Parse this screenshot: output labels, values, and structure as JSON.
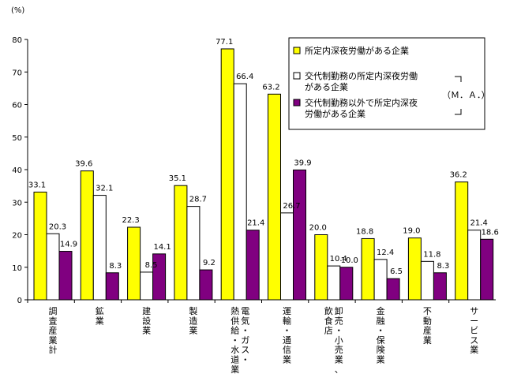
{
  "chart_data": {
    "type": "bar",
    "ylabel": "(%)",
    "ylim": [
      0,
      80
    ],
    "yticks": [
      0,
      10,
      20,
      30,
      40,
      50,
      60,
      70,
      80
    ],
    "grid": false,
    "legend_position": "top-right",
    "legend_bracket_note": "（Ｍ．Ａ．）",
    "categories": [
      "調査産業計",
      "鉱業",
      "建設業",
      "製造業",
      "電気・ガス・熱供給・水道業",
      "運輸・通信業",
      "卸売・小売業、飲食店",
      "金融・保険業",
      "不動産業",
      "サービス業"
    ],
    "category_columns": [
      [
        "調査産業計"
      ],
      [
        "鉱業"
      ],
      [
        "建設業"
      ],
      [
        "製造業"
      ],
      [
        "電気・ガス・",
        "熱供給・水道業"
      ],
      [
        "運輸・通信業"
      ],
      [
        "卸売・小売業、",
        "飲食店"
      ],
      [
        "金融・保険業"
      ],
      [
        "不動産業"
      ],
      [
        "サービス業"
      ]
    ],
    "series": [
      {
        "name": "所定内深夜労働がある企業",
        "color": "#ffff00",
        "values": [
          33.1,
          39.6,
          22.3,
          35.1,
          77.1,
          63.2,
          20.0,
          18.8,
          19.0,
          36.2
        ]
      },
      {
        "name": "交代制勤務の所定内深夜労働がある企業",
        "color": "#ffffff",
        "values": [
          20.3,
          32.1,
          8.5,
          28.7,
          66.4,
          26.7,
          10.4,
          12.4,
          11.8,
          21.4
        ]
      },
      {
        "name": "交代制勤務以外で所定内深夜労働がある企業",
        "color": "#800080",
        "values": [
          14.9,
          8.3,
          14.1,
          9.2,
          21.4,
          39.9,
          10.0,
          6.5,
          8.3,
          18.6
        ]
      }
    ],
    "legend_lines": [
      [
        "所定内深夜労働がある企業"
      ],
      [
        "交代制勤務の所定内深夜労働",
        "がある企業"
      ],
      [
        "交代制勤務以外で所定内深夜",
        "労働がある企業"
      ]
    ]
  }
}
